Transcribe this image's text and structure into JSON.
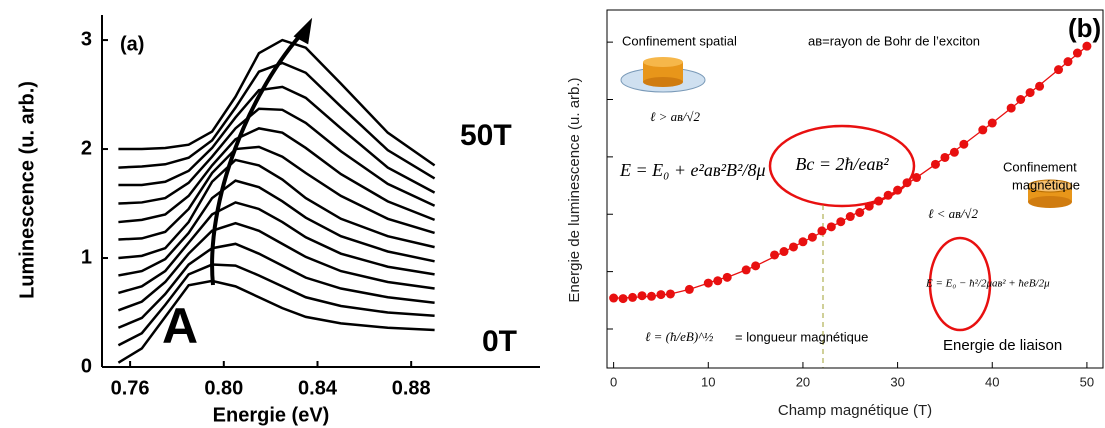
{
  "chart_data": [
    {
      "type": "line",
      "x_label": "Energie (eV)",
      "y_label": "Luminescence (u. arb.)",
      "color": "#000000",
      "x": [
        0.755,
        0.765,
        0.775,
        0.785,
        0.795,
        0.805,
        0.815,
        0.825,
        0.835,
        0.85,
        0.87,
        0.89
      ],
      "xlim": [
        0.748,
        0.935
      ],
      "xticks": [
        0.76,
        {
          "value": 0.8,
          "label": "0.80"
        },
        0.84,
        0.88
      ],
      "ylim": [
        0,
        3.23
      ],
      "yticks": [
        0,
        1,
        2,
        3
      ],
      "annotations": [
        "(a)",
        "50T",
        "0T",
        "A"
      ],
      "series": [
        {
          "values": [
            0.04,
            0.17,
            0.46,
            0.75,
            0.79,
            0.74,
            0.64,
            0.54,
            0.46,
            0.4,
            0.36,
            0.34
          ]
        },
        {
          "values": [
            0.2,
            0.31,
            0.57,
            0.85,
            0.94,
            0.93,
            0.84,
            0.74,
            0.64,
            0.56,
            0.5,
            0.47
          ]
        },
        {
          "values": [
            0.36,
            0.45,
            0.67,
            0.94,
            1.09,
            1.13,
            1.04,
            0.93,
            0.82,
            0.72,
            0.64,
            0.59
          ]
        },
        {
          "values": [
            0.52,
            0.6,
            0.78,
            1.04,
            1.25,
            1.32,
            1.25,
            1.13,
            1.01,
            0.88,
            0.78,
            0.72
          ]
        },
        {
          "values": [
            0.68,
            0.74,
            0.88,
            1.14,
            1.4,
            1.51,
            1.45,
            1.33,
            1.19,
            1.04,
            0.92,
            0.85
          ]
        },
        {
          "values": [
            0.84,
            0.88,
            0.99,
            1.23,
            1.55,
            1.71,
            1.65,
            1.52,
            1.37,
            1.2,
            1.06,
            0.97
          ]
        },
        {
          "values": [
            1.0,
            1.02,
            1.09,
            1.33,
            1.7,
            1.9,
            1.85,
            1.72,
            1.55,
            1.36,
            1.2,
            1.1
          ]
        },
        {
          "values": [
            1.17,
            1.18,
            1.24,
            1.45,
            1.78,
            2.0,
            2.02,
            1.93,
            1.78,
            1.57,
            1.36,
            1.23
          ]
        },
        {
          "values": [
            1.33,
            1.35,
            1.4,
            1.57,
            1.85,
            2.09,
            2.19,
            2.15,
            2.01,
            1.77,
            1.52,
            1.35
          ]
        },
        {
          "values": [
            1.5,
            1.51,
            1.55,
            1.69,
            1.93,
            2.19,
            2.37,
            2.36,
            2.24,
            1.98,
            1.68,
            1.48
          ]
        },
        {
          "values": [
            1.67,
            1.67,
            1.7,
            1.8,
            2.01,
            2.29,
            2.54,
            2.57,
            2.47,
            2.19,
            1.83,
            1.6
          ]
        },
        {
          "values": [
            1.83,
            1.84,
            1.86,
            1.92,
            2.08,
            2.38,
            2.71,
            2.79,
            2.7,
            2.39,
            1.99,
            1.73
          ]
        },
        {
          "values": [
            2.0,
            2.0,
            2.01,
            2.04,
            2.16,
            2.48,
            2.88,
            3.0,
            2.93,
            2.6,
            2.15,
            1.85
          ]
        }
      ]
    },
    {
      "type": "scatter",
      "x_label": "Champ magnétique (T)",
      "y_label": "Energie de luminescence (u. arb.)",
      "x": [
        0,
        1,
        2,
        3,
        4,
        5,
        6,
        8,
        10,
        11,
        12,
        14,
        15,
        17,
        18,
        19,
        20,
        21,
        22,
        23,
        24,
        25,
        26,
        27,
        28,
        29,
        30,
        31,
        32,
        34,
        35,
        36,
        37,
        39,
        40,
        42,
        43,
        44,
        45,
        47,
        48,
        49,
        50
      ],
      "xlim": [
        -0.7,
        51.7
      ],
      "xticks": [
        0,
        10,
        20,
        30,
        40,
        50
      ],
      "ylim": [
        0.32,
        6.56
      ],
      "yticks": [
        1,
        2,
        3,
        4,
        5,
        6
      ],
      "ytick_labels": false,
      "annotations": [
        "(b)",
        "Confinement spatial",
        "aʙ=rayon de Bohr de l’exciton",
        "ℓ > aʙ/√2",
        "E = E₀ + e²aʙ²B²/8μ",
        "Bc = 2ħ/eaʙ²",
        "Confinement",
        "magnétique",
        "ℓ < aʙ/√2",
        "E = E₀ − ħ²/2μaʙ² + ħeB/2μ",
        "ℓ = (ħ/eB)^½",
        "= longueur magnétique",
        "Energie de liaison"
      ],
      "series": [
        {
          "style": "markers",
          "color": "#e81010",
          "values": [
            1.54,
            1.53,
            1.55,
            1.58,
            1.57,
            1.6,
            1.61,
            1.69,
            1.8,
            1.84,
            1.9,
            2.03,
            2.1,
            2.29,
            2.35,
            2.43,
            2.52,
            2.6,
            2.71,
            2.78,
            2.87,
            2.96,
            3.03,
            3.14,
            3.23,
            3.33,
            3.42,
            3.55,
            3.64,
            3.87,
            3.99,
            4.08,
            4.22,
            4.47,
            4.59,
            4.85,
            5.0,
            5.12,
            5.23,
            5.52,
            5.66,
            5.81,
            5.93
          ]
        },
        {
          "style": "line",
          "color": "#e81010",
          "values": [
            1.54,
            1.54,
            1.55,
            1.56,
            1.57,
            1.59,
            1.61,
            1.69,
            1.8,
            1.86,
            1.9,
            2.03,
            2.1,
            2.26,
            2.35,
            2.43,
            2.52,
            2.6,
            2.69,
            2.78,
            2.87,
            2.96,
            3.05,
            3.14,
            3.23,
            3.33,
            3.42,
            3.53,
            3.64,
            3.87,
            3.99,
            4.1,
            4.22,
            4.47,
            4.59,
            4.85,
            4.98,
            5.12,
            5.25,
            5.52,
            5.66,
            5.79,
            5.93
          ]
        }
      ]
    }
  ]
}
